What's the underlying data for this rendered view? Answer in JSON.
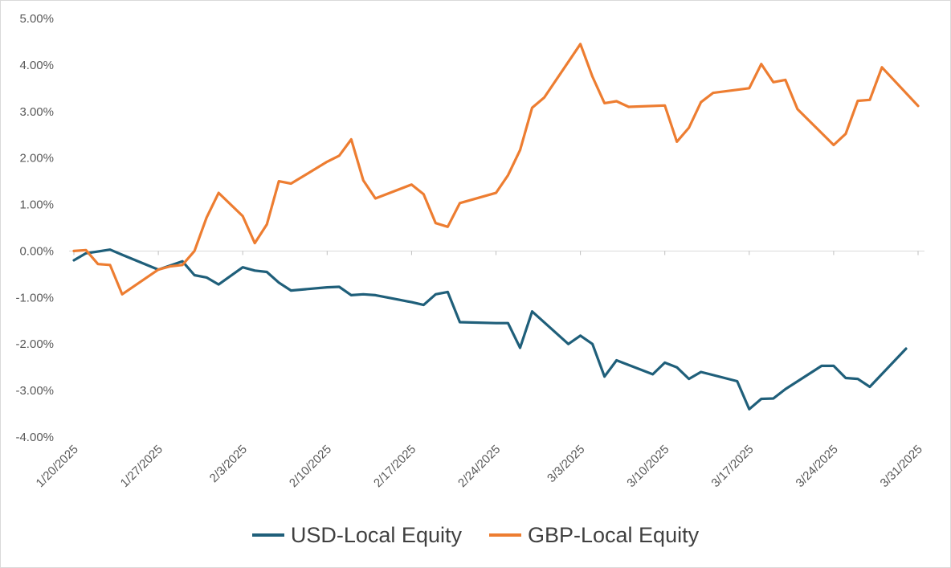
{
  "chart_data": {
    "type": "line",
    "title": "",
    "xlabel": "",
    "ylabel": "",
    "x_ticks": [
      "1/20/2025",
      "1/27/2025",
      "2/3/2025",
      "2/10/2025",
      "2/17/2025",
      "2/24/2025",
      "3/3/2025",
      "3/10/2025",
      "3/17/2025",
      "3/24/2025",
      "3/31/2025"
    ],
    "y_ticks": [
      "5.00%",
      "4.00%",
      "3.00%",
      "2.00%",
      "1.00%",
      "0.00%",
      "-1.00%",
      "-2.00%",
      "-3.00%",
      "-4.00%"
    ],
    "ylim": [
      -4,
      5
    ],
    "xlim": [
      "1/20/2025",
      "3/31/2025"
    ],
    "grid": false,
    "legend_position": "bottom",
    "series": [
      {
        "name": "USD-Local Equity",
        "color": "#1f5f7a",
        "points": [
          [
            "1/20/2025",
            -0.2
          ],
          [
            "1/21/2025",
            -0.05
          ],
          [
            "1/23/2025",
            0.03
          ],
          [
            "1/24/2025",
            -0.08
          ],
          [
            "1/27/2025",
            -0.4
          ],
          [
            "1/29/2025",
            -0.22
          ],
          [
            "1/30/2025",
            -0.52
          ],
          [
            "1/31/2025",
            -0.57
          ],
          [
            "2/1/2025",
            -0.72
          ],
          [
            "2/3/2025",
            -0.35
          ],
          [
            "2/4/2025",
            -0.42
          ],
          [
            "2/5/2025",
            -0.45
          ],
          [
            "2/6/2025",
            -0.68
          ],
          [
            "2/7/2025",
            -0.85
          ],
          [
            "2/10/2025",
            -0.78
          ],
          [
            "2/11/2025",
            -0.77
          ],
          [
            "2/12/2025",
            -0.95
          ],
          [
            "2/13/2025",
            -0.93
          ],
          [
            "2/14/2025",
            -0.95
          ],
          [
            "2/16/2025",
            -1.05
          ],
          [
            "2/17/2025",
            -1.1
          ],
          [
            "2/18/2025",
            -1.16
          ],
          [
            "2/19/2025",
            -0.93
          ],
          [
            "2/20/2025",
            -0.88
          ],
          [
            "2/21/2025",
            -1.53
          ],
          [
            "2/24/2025",
            -1.55
          ],
          [
            "2/25/2025",
            -1.55
          ],
          [
            "2/26/2025",
            -2.08
          ],
          [
            "2/27/2025",
            -1.3
          ],
          [
            "3/2/2025",
            -2.0
          ],
          [
            "3/3/2025",
            -1.82
          ],
          [
            "3/4/2025",
            -2.0
          ],
          [
            "3/5/2025",
            -2.7
          ],
          [
            "3/6/2025",
            -2.35
          ],
          [
            "3/9/2025",
            -2.65
          ],
          [
            "3/10/2025",
            -2.4
          ],
          [
            "3/11/2025",
            -2.5
          ],
          [
            "3/12/2025",
            -2.75
          ],
          [
            "3/13/2025",
            -2.6
          ],
          [
            "3/16/2025",
            -2.8
          ],
          [
            "3/17/2025",
            -3.4
          ],
          [
            "3/18/2025",
            -3.18
          ],
          [
            "3/19/2025",
            -3.17
          ],
          [
            "3/20/2025",
            -2.97
          ],
          [
            "3/23/2025",
            -2.47
          ],
          [
            "3/24/2025",
            -2.47
          ],
          [
            "3/25/2025",
            -2.73
          ],
          [
            "3/26/2025",
            -2.75
          ],
          [
            "3/27/2025",
            -2.92
          ],
          [
            "3/30/2025",
            -2.1
          ]
        ]
      },
      {
        "name": "GBP-Local Equity",
        "color": "#ed7d31",
        "points": [
          [
            "1/20/2025",
            0.0
          ],
          [
            "1/21/2025",
            0.02
          ],
          [
            "1/22/2025",
            -0.28
          ],
          [
            "1/23/2025",
            -0.3
          ],
          [
            "1/24/2025",
            -0.93
          ],
          [
            "1/27/2025",
            -0.4
          ],
          [
            "1/28/2025",
            -0.33
          ],
          [
            "1/29/2025",
            -0.3
          ],
          [
            "1/30/2025",
            0.0
          ],
          [
            "1/31/2025",
            0.72
          ],
          [
            "2/1/2025",
            1.25
          ],
          [
            "2/3/2025",
            0.75
          ],
          [
            "2/4/2025",
            0.17
          ],
          [
            "2/5/2025",
            0.57
          ],
          [
            "2/6/2025",
            1.5
          ],
          [
            "2/7/2025",
            1.45
          ],
          [
            "2/10/2025",
            1.92
          ],
          [
            "2/11/2025",
            2.05
          ],
          [
            "2/12/2025",
            2.4
          ],
          [
            "2/13/2025",
            1.52
          ],
          [
            "2/14/2025",
            1.13
          ],
          [
            "2/17/2025",
            1.43
          ],
          [
            "2/18/2025",
            1.22
          ],
          [
            "2/19/2025",
            0.6
          ],
          [
            "2/20/2025",
            0.52
          ],
          [
            "2/21/2025",
            1.03
          ],
          [
            "2/24/2025",
            1.25
          ],
          [
            "2/25/2025",
            1.63
          ],
          [
            "2/26/2025",
            2.17
          ],
          [
            "2/27/2025",
            3.08
          ],
          [
            "2/28/2025",
            3.3
          ],
          [
            "3/3/2025",
            4.45
          ],
          [
            "3/4/2025",
            3.75
          ],
          [
            "3/5/2025",
            3.18
          ],
          [
            "3/6/2025",
            3.22
          ],
          [
            "3/7/2025",
            3.1
          ],
          [
            "3/10/2025",
            3.13
          ],
          [
            "3/11/2025",
            2.35
          ],
          [
            "3/12/2025",
            2.65
          ],
          [
            "3/13/2025",
            3.2
          ],
          [
            "3/14/2025",
            3.4
          ],
          [
            "3/17/2025",
            3.5
          ],
          [
            "3/18/2025",
            4.02
          ],
          [
            "3/19/2025",
            3.63
          ],
          [
            "3/20/2025",
            3.68
          ],
          [
            "3/21/2025",
            3.05
          ],
          [
            "3/24/2025",
            2.28
          ],
          [
            "3/25/2025",
            2.52
          ],
          [
            "3/26/2025",
            3.23
          ],
          [
            "3/27/2025",
            3.25
          ],
          [
            "3/28/2025",
            3.95
          ],
          [
            "3/31/2025",
            3.12
          ]
        ]
      }
    ]
  }
}
